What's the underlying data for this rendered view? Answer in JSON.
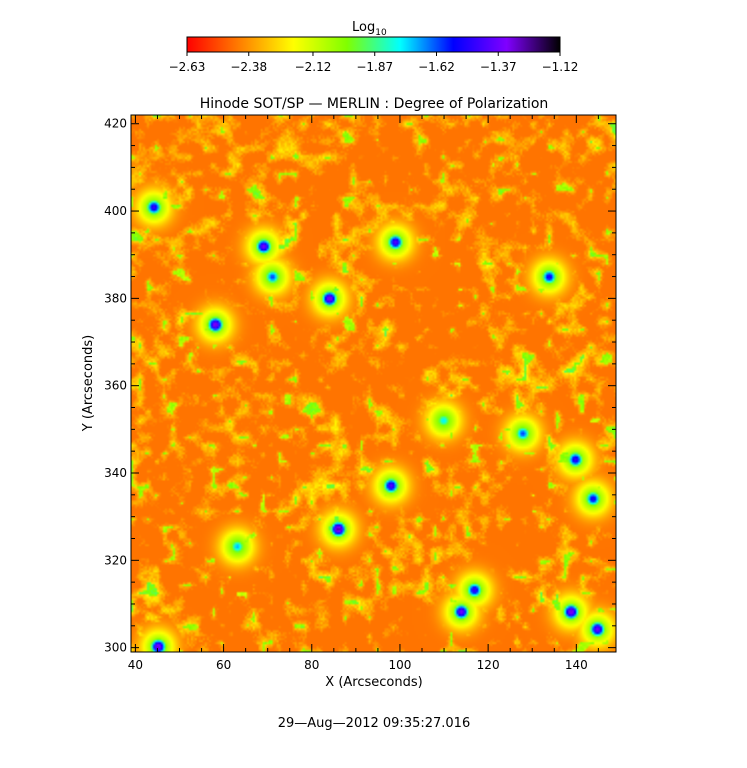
{
  "chart_data": {
    "type": "heatmap",
    "title": "Hinode SOT/SP — MERLIN : Degree of Polarization",
    "xlabel": "X (Arcseconds)",
    "ylabel": "Y (Arcseconds)",
    "xlim": [
      39,
      149
    ],
    "ylim": [
      299,
      422
    ],
    "x_ticks": [
      40,
      60,
      80,
      100,
      120,
      140
    ],
    "y_ticks": [
      300,
      320,
      340,
      360,
      380,
      400,
      420
    ],
    "colorbar": {
      "label": "Log",
      "label_subscript": "10",
      "range": [
        -2.63,
        -1.12
      ],
      "tick_values": [
        -2.63,
        -2.38,
        -2.12,
        -1.87,
        -1.62,
        -1.37,
        -1.12
      ],
      "tick_labels": [
        "−2.63",
        "−2.38",
        "−2.12",
        "−1.87",
        "−1.62",
        "−1.37",
        "−1.12"
      ],
      "colors": [
        "#ff0000",
        "#ff8000",
        "#ffff00",
        "#80ff00",
        "#00ffff",
        "#0000ff",
        "#8000ff",
        "#000000"
      ]
    },
    "features": [
      {
        "x": 58,
        "y": 374,
        "value": -1.3
      },
      {
        "x": 69,
        "y": 392,
        "value": -1.35
      },
      {
        "x": 71,
        "y": 385,
        "value": -1.6
      },
      {
        "x": 84,
        "y": 380,
        "value": -1.3
      },
      {
        "x": 99,
        "y": 393,
        "value": -1.4
      },
      {
        "x": 86,
        "y": 327,
        "value": -1.25
      },
      {
        "x": 98,
        "y": 337,
        "value": -1.4
      },
      {
        "x": 114,
        "y": 308,
        "value": -1.35
      },
      {
        "x": 117,
        "y": 313,
        "value": -1.45
      },
      {
        "x": 139,
        "y": 308,
        "value": -1.3
      },
      {
        "x": 145,
        "y": 304,
        "value": -1.35
      },
      {
        "x": 144,
        "y": 334,
        "value": -1.5
      },
      {
        "x": 140,
        "y": 343,
        "value": -1.45
      },
      {
        "x": 134,
        "y": 385,
        "value": -1.5
      },
      {
        "x": 44,
        "y": 401,
        "value": -1.45
      },
      {
        "x": 128,
        "y": 349,
        "value": -1.6
      },
      {
        "x": 45,
        "y": 300,
        "value": -1.3
      },
      {
        "x": 110,
        "y": 352,
        "value": -1.75
      },
      {
        "x": 63,
        "y": 323,
        "value": -1.7
      }
    ]
  },
  "footer": {
    "timestamp": "29—Aug—2012 09:35:27.016"
  }
}
